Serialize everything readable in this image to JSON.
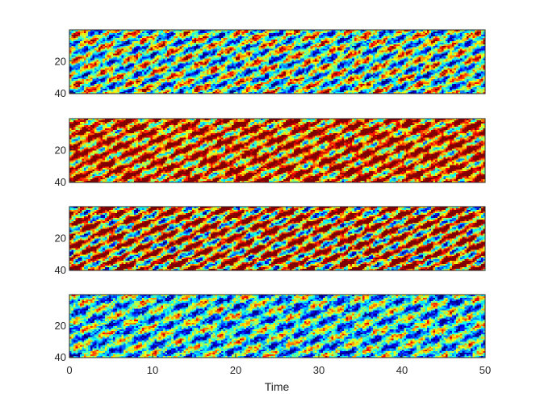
{
  "chart_data": {
    "type": "heatmap",
    "xlabel": "Time",
    "x_range": [
      0,
      50
    ],
    "x_ticks": [
      0,
      10,
      20,
      30,
      40,
      50
    ],
    "y_range": [
      1,
      40
    ],
    "y_ticks": [
      20,
      40
    ],
    "y_reversed": true,
    "colormap": "jet",
    "grid": false,
    "panels": [
      {
        "level": 0.48,
        "contrast": 0.55,
        "stripe_freq": 0.9
      },
      {
        "level": 0.8,
        "contrast": 0.55,
        "stripe_freq": 1.0
      },
      {
        "level": 0.72,
        "contrast": 0.75,
        "stripe_freq": 1.0
      },
      {
        "level": 0.4,
        "contrast": 0.45,
        "stripe_freq": 0.8
      }
    ]
  }
}
